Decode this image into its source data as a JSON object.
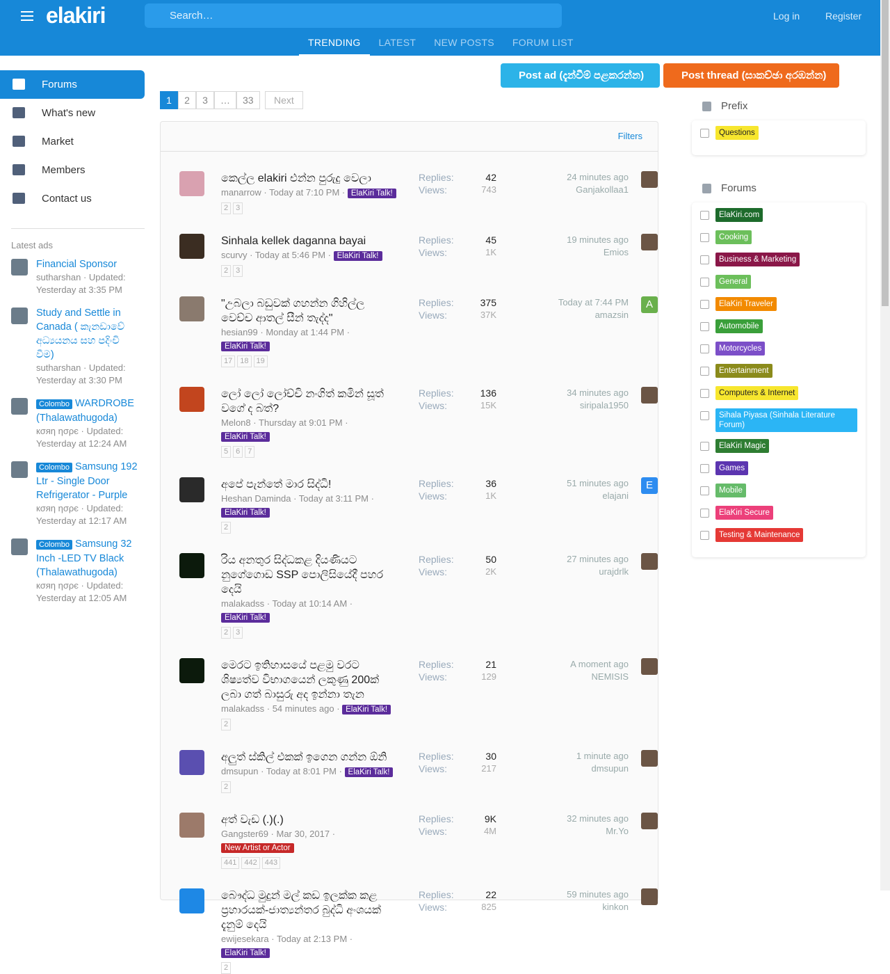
{
  "header": {
    "logo": "elakiri",
    "search": "Search…",
    "login": "Log in",
    "register": "Register"
  },
  "tabs": [
    "TRENDING",
    "LATEST",
    "NEW POSTS",
    "FORUM LIST"
  ],
  "sidebar": {
    "menu": [
      "Forums",
      "What's new",
      "Market",
      "Members",
      "Contact us"
    ],
    "latest_ads": "Latest ads",
    "updated_label": "Updated:",
    "ads": [
      {
        "title": "Financial Sponsor",
        "author": "sutharshan",
        "time": "Yesterday at 3:35 PM"
      },
      {
        "title": "Study and Settle in Canada ( කැනඩාවේ අධ්‍යයනය සහ පදිංචි වීම)",
        "author": "sutharshan",
        "time": "Yesterday at 3:30 PM"
      },
      {
        "location": "Colombo",
        "title": "WARDROBE (Thalawathugoda)",
        "author": "кσяη ησρє",
        "time": "Yesterday at 12:24 AM"
      },
      {
        "location": "Colombo",
        "title": "Samsung 192 Ltr - Single Door Refrigerator - Purple",
        "author": "кσяη ησρє",
        "time": "Yesterday at 12:17 AM"
      },
      {
        "location": "Colombo",
        "title": "Samsung 32 Inch -LED TV Black (Thalawathugoda)",
        "author": "кσяη ησρє",
        "time": "Yesterday at 12:05 AM"
      }
    ]
  },
  "actions": {
    "post_ad": "Post ad (දැන්වීම් පළකරන්න)",
    "post_thread": "Post thread (සාකච්ඡා අරඹන්න)"
  },
  "pagination": {
    "pages": [
      1,
      2,
      3,
      "…",
      33
    ],
    "next": "Next"
  },
  "filters": "Filters",
  "thread_list": {
    "replies_label": "Replies:",
    "views_label": "Views:",
    "threads": [
      {
        "title": "කෙල්ල elakiri එන්න පුරුදු වෙලා",
        "author": "manarrow",
        "time": "Today at 7:10 PM",
        "prefix": "ElaKiri Talk!",
        "pages": [
          2,
          3
        ],
        "replies": 42,
        "views": 743,
        "last_time": "24 minutes ago",
        "last_user": "Ganjakollaa1"
      },
      {
        "title": "Sinhala kellek daganna bayai",
        "author": "scurvy",
        "time": "Today at 5:46 PM",
        "prefix": "ElaKiri Talk!",
        "pages": [
          2,
          3
        ],
        "replies": 45,
        "views": "1K",
        "last_time": "19 minutes ago",
        "last_user": "Emios"
      },
      {
        "title": "\"උබලා බඩුවක් ගහන්න ගිහිල්ල වෙච්ච ආතල් සීන් තැද්ද\"",
        "author": "hesian99",
        "time": "Monday at 1:44 PM",
        "prefix": "ElaKiri Talk!",
        "pages": [
          17,
          18,
          19
        ],
        "replies": 375,
        "views": "37K",
        "last_time": "Today at 7:44 PM",
        "last_user": "amazsin",
        "last_avatar_letter": "A"
      },
      {
        "title": "ලෝ ලෝ ලෝච්චි නංගිත් කමින් සූත් වගේ ද බත්?",
        "author": "Melon8",
        "time": "Thursday at 9:01 PM",
        "prefix": "ElaKiri Talk!",
        "pages": [
          5,
          6,
          7
        ],
        "replies": 136,
        "views": "15K",
        "last_time": "34 minutes ago",
        "last_user": "siripala1950"
      },
      {
        "title": "අපේ පැන්තේ මාර සිද්ධි!",
        "author": "Heshan Daminda",
        "time": "Today at 3:11 PM",
        "prefix": "ElaKiri Talk!",
        "pages": [
          2
        ],
        "replies": 36,
        "views": "1K",
        "last_time": "51 minutes ago",
        "last_user": "elajani",
        "last_avatar_letter": "E"
      },
      {
        "title": "රිය අනතුර සිද්ධකළ දියණියට නුගේගොඩ SSP පොලිසියේදී පහර දෙයි",
        "author": "malakadss",
        "time": "Today at 10:14 AM",
        "prefix": "ElaKiri Talk!",
        "pages": [
          2,
          3
        ],
        "replies": 50,
        "views": "2K",
        "last_time": "27 minutes ago",
        "last_user": "urajdrlk"
      },
      {
        "title": "මෙරට ඉතිහාසයේ පළමු වරට ශිෂ්‍යත්ව විභාගයෙන් ලකුණු 200ක් ලබා ගත් බාසුරු අද ඉන්නා තැන",
        "author": "malakadss",
        "time": "54 minutes ago",
        "prefix": "ElaKiri Talk!",
        "pages": [
          2
        ],
        "replies": 21,
        "views": 129,
        "last_time": "A moment ago",
        "last_user": "NEMISIS"
      },
      {
        "title": "අලුත් ස්කිල් එකක් ඉගෙන ගන්න ඕනි",
        "author": "dmsupun",
        "time": "Today at 8:01 PM",
        "prefix": "ElaKiri Talk!",
        "pages": [
          2
        ],
        "replies": 30,
        "views": 217,
        "last_time": "1 minute ago",
        "last_user": "dmsupun"
      },
      {
        "title": "අත් වැඩ (.)(.)",
        "author": "Gangster69",
        "time": "Mar 30, 2017",
        "prefix": "New Artist or Actor",
        "pages": [
          441,
          442,
          443
        ],
        "replies": "9K",
        "views": "4M",
        "last_time": "32 minutes ago",
        "last_user": "Mr.Yo"
      },
      {
        "title": "බෞද්ධ මුදුන් මල් කඩ ඉලක්ක කළ ප්‍රහාරයක්-ජාත්‍යන්තර බුද්ධි අංශයක් දැනුම් දෙයි",
        "author": "ewijesekara",
        "time": "Today at 2:13 PM",
        "prefix": "ElaKiri Talk!",
        "pages": [
          2
        ],
        "replies": 22,
        "views": 825,
        "last_time": "59 minutes ago",
        "last_user": "kinkon"
      }
    ]
  },
  "filter_panel": {
    "prefix_title": "Prefix",
    "prefixes": [
      {
        "label": "Questions",
        "color": "#f7e62e"
      }
    ],
    "forums_title": "Forums",
    "forums": [
      {
        "label": "ElaKiri.com",
        "color": "#1d6b2c"
      },
      {
        "label": "Cooking",
        "color": "#6cbf5b"
      },
      {
        "label": "Business & Marketing",
        "color": "#8a1748"
      },
      {
        "label": "General",
        "color": "#6cbf5b"
      },
      {
        "label": "ElaKiri Traveler",
        "color": "#f28a00"
      },
      {
        "label": "Automobile",
        "color": "#3a9f3a"
      },
      {
        "label": "Motorcycles",
        "color": "#7c4fc8"
      },
      {
        "label": "Entertainment",
        "color": "#8b8b1b"
      },
      {
        "label": "Computers & Internet",
        "color": "#f7e62e"
      },
      {
        "label": "Sihala Piyasa (Sinhala Literature Forum)",
        "color": "#2bb5f5"
      },
      {
        "label": "ElaKiri Magic",
        "color": "#2e7d32"
      },
      {
        "label": "Games",
        "color": "#5c35b0"
      },
      {
        "label": "Mobile",
        "color": "#66bb6a"
      },
      {
        "label": "ElaKiri Secure",
        "color": "#ec407a"
      },
      {
        "label": "Testing & Maintenance",
        "color": "#e53935"
      }
    ]
  }
}
